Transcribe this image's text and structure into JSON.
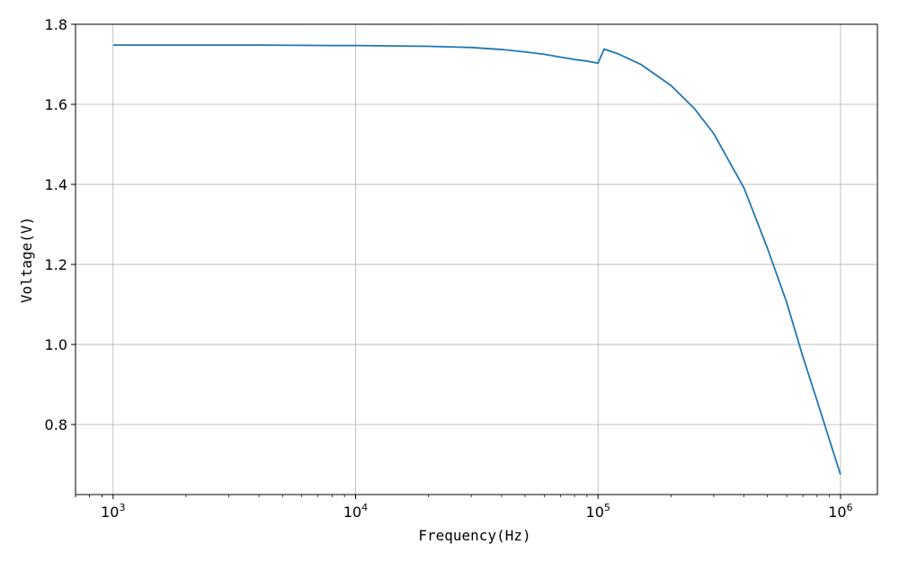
{
  "chart_data": {
    "type": "line",
    "title": "",
    "xlabel": "Frequency(Hz)",
    "ylabel": "Voltage(V)",
    "xscale": "log",
    "xlim": [
      700,
      1420000
    ],
    "ylim": [
      0.625,
      1.8
    ],
    "grid": true,
    "x_ticks": [
      {
        "value": 1000,
        "base": "10",
        "exp": "3"
      },
      {
        "value": 10000,
        "base": "10",
        "exp": "4"
      },
      {
        "value": 100000,
        "base": "10",
        "exp": "5"
      },
      {
        "value": 1000000,
        "base": "10",
        "exp": "6"
      }
    ],
    "y_ticks": [
      {
        "value": 0.8,
        "label": "0.8"
      },
      {
        "value": 1.0,
        "label": "1.0"
      },
      {
        "value": 1.2,
        "label": "1.2"
      },
      {
        "value": 1.4,
        "label": "1.4"
      },
      {
        "value": 1.6,
        "label": "1.6"
      },
      {
        "value": 1.8,
        "label": "1.8"
      }
    ],
    "series": [
      {
        "color": "#1f77b4",
        "x": [
          1000,
          2000,
          4000,
          8000,
          10000,
          20000,
          30000,
          40000,
          50000,
          60000,
          70000,
          80000,
          90000,
          100000,
          106000,
          120000,
          150000,
          200000,
          250000,
          300000,
          400000,
          500000,
          600000,
          700000,
          800000,
          900000,
          1000000
        ],
        "y": [
          1.748,
          1.748,
          1.748,
          1.747,
          1.747,
          1.745,
          1.742,
          1.737,
          1.731,
          1.725,
          1.718,
          1.712,
          1.708,
          1.703,
          1.738,
          1.727,
          1.7,
          1.647,
          1.589,
          1.527,
          1.391,
          1.24,
          1.105,
          0.969,
          0.86,
          0.762,
          0.675
        ]
      }
    ]
  }
}
